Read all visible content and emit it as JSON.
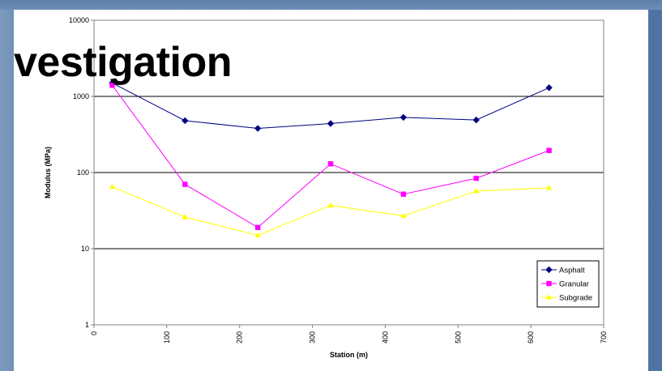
{
  "slide": {
    "title": "vestigation"
  },
  "chart_data": {
    "type": "line",
    "title": "",
    "xlabel": "Station (m)",
    "ylabel": "Modulus (MPa)",
    "xlim": [
      0,
      700
    ],
    "ylim": [
      1,
      10000
    ],
    "yscale": "log",
    "xticks": [
      0,
      100,
      200,
      300,
      400,
      500,
      600,
      700
    ],
    "xtick_labels": [
      "0",
      "100",
      "200",
      "300",
      "400",
      "500",
      "600",
      "700"
    ],
    "yticks": [
      1,
      10,
      100,
      1000,
      10000
    ],
    "ytick_labels": [
      "1",
      "10",
      "100",
      "1000",
      "10000"
    ],
    "grid": "horizontal major lines",
    "legend_position": "bottom-right",
    "x": [
      25,
      125,
      225,
      325,
      425,
      525,
      625
    ],
    "series": [
      {
        "name": "Asphalt",
        "color": "#000080",
        "marker": "diamond",
        "values": [
          1500,
          480,
          380,
          440,
          530,
          490,
          1300
        ]
      },
      {
        "name": "Granular",
        "color": "#ff00ff",
        "marker": "square",
        "values": [
          1400,
          70,
          19,
          130,
          52,
          84,
          195
        ]
      },
      {
        "name": "Subgrade",
        "color": "#ffff00",
        "marker": "triangle",
        "values": [
          65,
          26,
          15,
          37,
          27,
          57,
          63
        ]
      }
    ]
  }
}
